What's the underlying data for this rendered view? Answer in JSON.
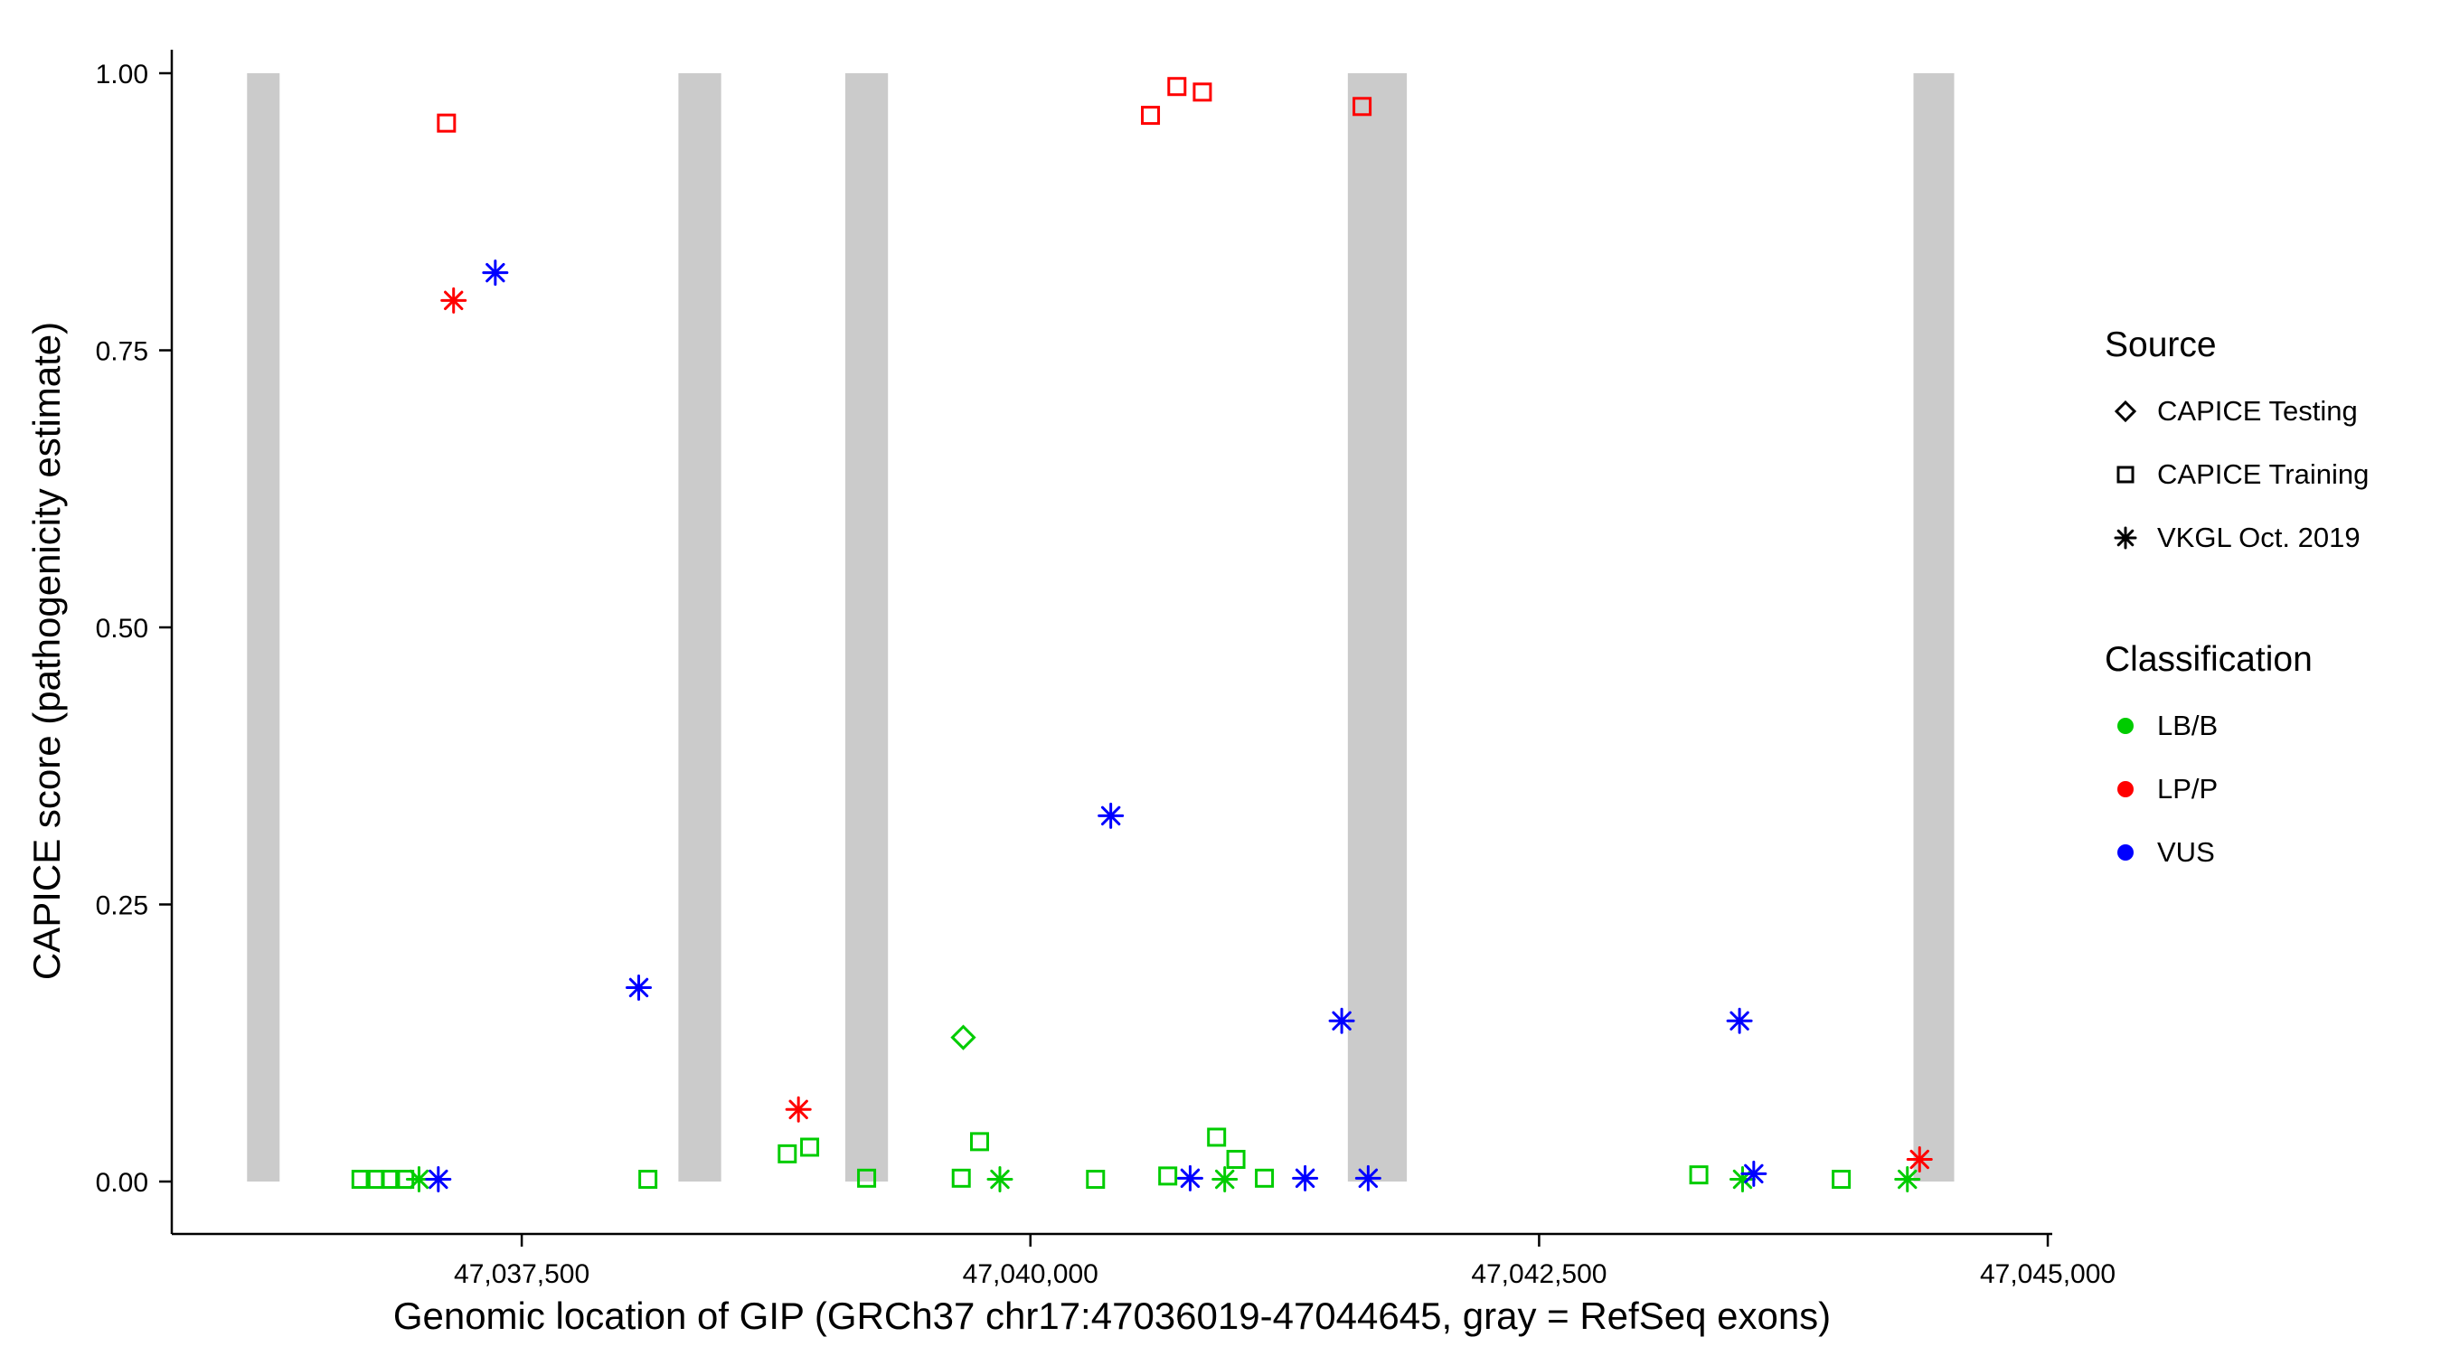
{
  "legend": {
    "source_title": "Source",
    "source_items": [
      {
        "label": "CAPICE Testing",
        "shape": "diamond"
      },
      {
        "label": "CAPICE Training",
        "shape": "square"
      },
      {
        "label": "VKGL Oct. 2019",
        "shape": "asterisk"
      }
    ],
    "classification_title": "Classification",
    "classification_items": [
      {
        "label": "LB/B",
        "color": "#00CC00"
      },
      {
        "label": "LP/P",
        "color": "#FF0000"
      },
      {
        "label": "VUS",
        "color": "#0000FF"
      }
    ]
  },
  "chart_data": {
    "type": "scatter",
    "title": "",
    "xlabel": "Genomic location of GIP (GRCh37 chr17:47036019-47044645, gray = RefSeq exons)",
    "ylabel": "CAPICE score (pathogenicity estimate)",
    "x_domain": [
      47035780,
      47045022
    ],
    "y_domain": [
      0,
      1
    ],
    "x_ticks": [
      {
        "value": 47037500,
        "label": "47,037,500"
      },
      {
        "value": 47040000,
        "label": "47,040,000"
      },
      {
        "value": 47042500,
        "label": "47,042,500"
      },
      {
        "value": 47045000,
        "label": "47,045,000"
      }
    ],
    "y_ticks": [
      {
        "value": 0.0,
        "label": "0.00"
      },
      {
        "value": 0.25,
        "label": "0.25"
      },
      {
        "value": 0.5,
        "label": "0.50"
      },
      {
        "value": 0.75,
        "label": "0.75"
      },
      {
        "value": 1.0,
        "label": "1.00"
      }
    ],
    "exon_color": "#CBCBCB",
    "exons": [
      {
        "start": 47036150,
        "end": 47036310
      },
      {
        "start": 47038270,
        "end": 47038480
      },
      {
        "start": 47039090,
        "end": 47039300
      },
      {
        "start": 47041560,
        "end": 47041850
      },
      {
        "start": 47044340,
        "end": 47044540
      }
    ],
    "classification_colors": {
      "LB_B": "#00CC00",
      "LP_P": "#FF0000",
      "VUS": "#0000FF"
    },
    "source_shapes": {
      "CAPICE_Testing": "diamond",
      "CAPICE_Training": "square",
      "VKGL_Oct_2019": "asterisk"
    },
    "series": [
      {
        "source": "CAPICE Testing",
        "classification": "LB/B",
        "shape": "diamond",
        "color": "#00CC00",
        "points": [
          [
            47039670,
            0.13
          ]
        ]
      },
      {
        "source": "CAPICE Training",
        "classification": "LB/B",
        "shape": "square",
        "color": "#00CC00",
        "points": [
          [
            47036710,
            0.002
          ],
          [
            47036780,
            0.002
          ],
          [
            47036855,
            0.002
          ],
          [
            47036925,
            0.002
          ],
          [
            47038120,
            0.002
          ],
          [
            47038805,
            0.025
          ],
          [
            47038915,
            0.031
          ],
          [
            47039195,
            0.003
          ],
          [
            47039660,
            0.003
          ],
          [
            47039750,
            0.036
          ],
          [
            47040320,
            0.002
          ],
          [
            47040675,
            0.005
          ],
          [
            47040915,
            0.04
          ],
          [
            47041010,
            0.02
          ],
          [
            47041150,
            0.003
          ],
          [
            47043285,
            0.006
          ],
          [
            47043985,
            0.002
          ]
        ]
      },
      {
        "source": "CAPICE Training",
        "classification": "LP/P",
        "shape": "square",
        "color": "#FF0000",
        "points": [
          [
            47037130,
            0.955
          ],
          [
            47040590,
            0.962
          ],
          [
            47040720,
            0.988
          ],
          [
            47040845,
            0.983
          ],
          [
            47041630,
            0.97
          ]
        ]
      },
      {
        "source": "VKGL Oct. 2019",
        "classification": "LB/B",
        "shape": "asterisk",
        "color": "#00CC00",
        "points": [
          [
            47036995,
            0.002
          ],
          [
            47039850,
            0.002
          ],
          [
            47040955,
            0.002
          ],
          [
            47043500,
            0.002
          ],
          [
            47044310,
            0.002
          ]
        ]
      },
      {
        "source": "VKGL Oct. 2019",
        "classification": "LP/P",
        "shape": "asterisk",
        "color": "#FF0000",
        "points": [
          [
            47037165,
            0.795
          ],
          [
            47038860,
            0.065
          ],
          [
            47044370,
            0.02
          ]
        ]
      },
      {
        "source": "VKGL Oct. 2019",
        "classification": "VUS",
        "shape": "asterisk",
        "color": "#0000FF",
        "points": [
          [
            47037370,
            0.82
          ],
          [
            47038075,
            0.175
          ],
          [
            47040395,
            0.33
          ],
          [
            47041530,
            0.145
          ],
          [
            47043485,
            0.145
          ],
          [
            47037090,
            0.002
          ],
          [
            47040785,
            0.003
          ],
          [
            47041350,
            0.003
          ],
          [
            47041660,
            0.003
          ],
          [
            47043555,
            0.007
          ]
        ]
      }
    ]
  }
}
